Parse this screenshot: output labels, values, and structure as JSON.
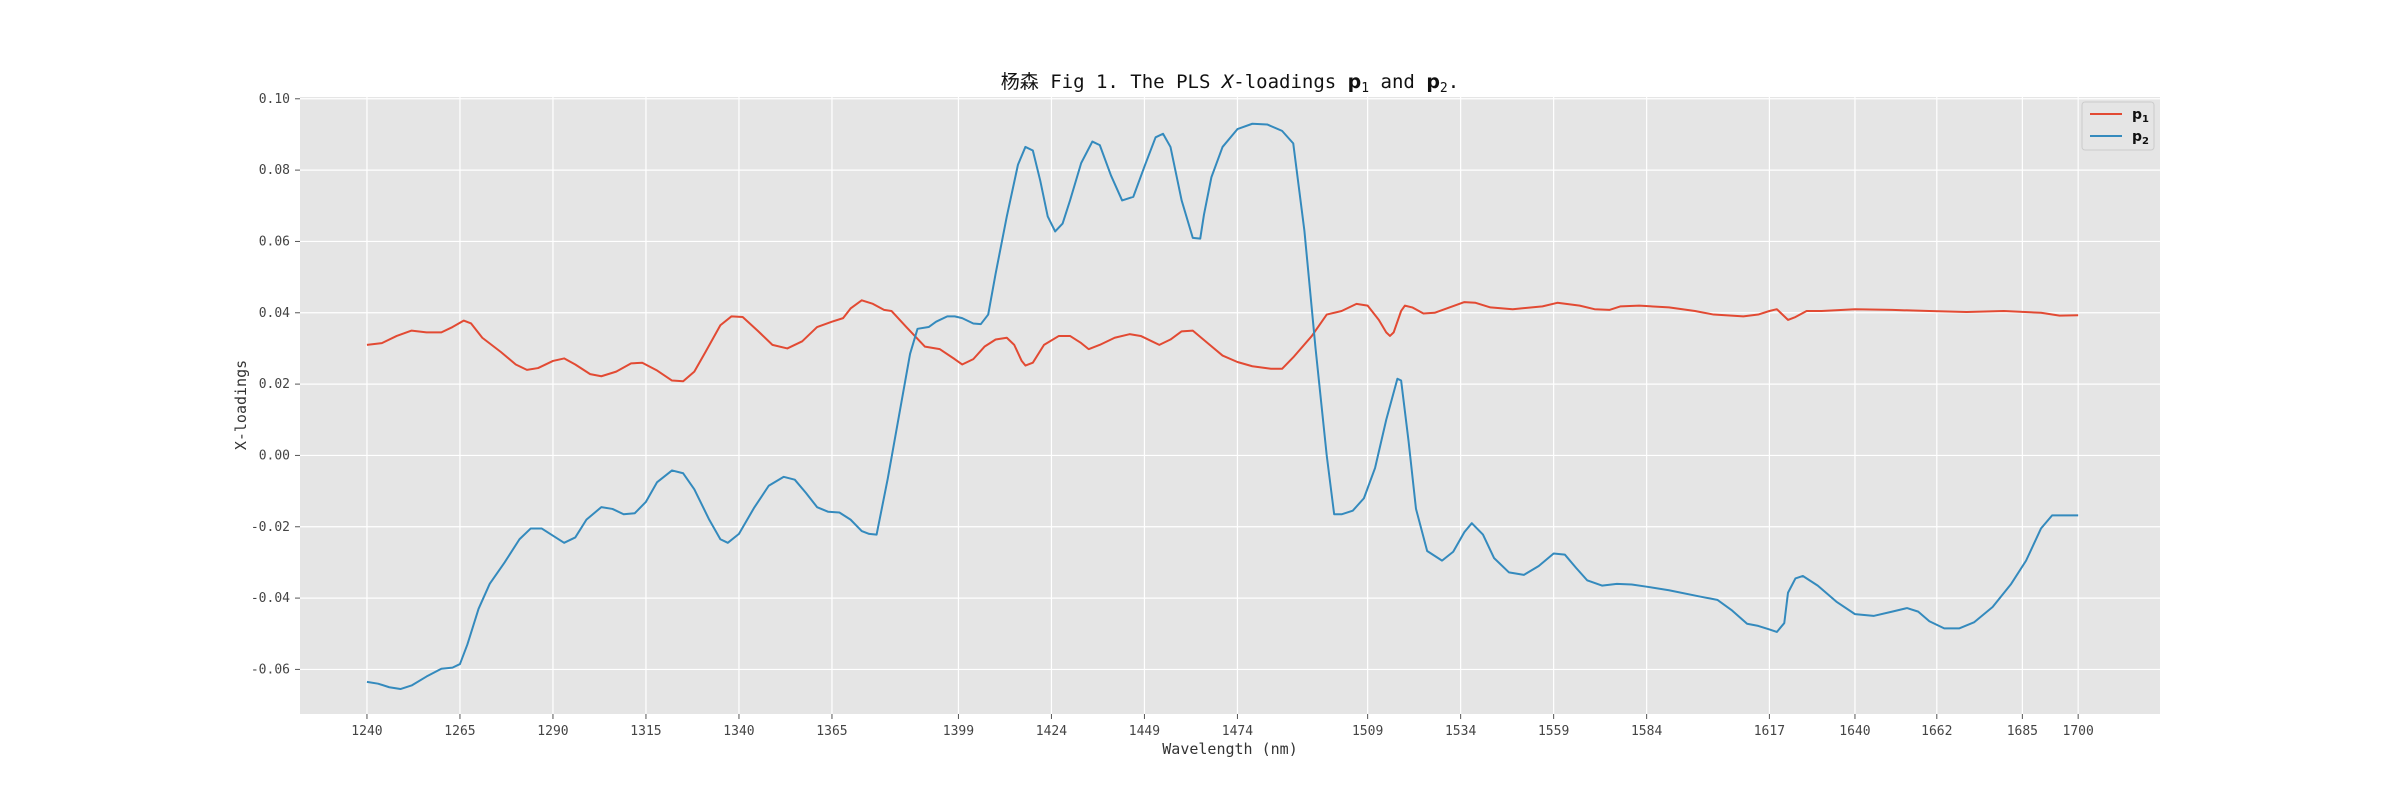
{
  "chart_data": {
    "type": "line",
    "title": {
      "prefix": "杨森 Fig 1. The PLS ",
      "x_var": "X",
      "mid": "-loadings ",
      "p1_base": "p",
      "p1_sub": "1",
      "and": " and ",
      "p2_base": "p",
      "p2_sub": "2",
      "end": "."
    },
    "xlabel": "Wavelength (nm)",
    "ylabel": "X-loadings",
    "xlim": [
      1222,
      1722
    ],
    "ylim": [
      -0.0725,
      0.1005
    ],
    "x_ticks": [
      1240,
      1265,
      1290,
      1315,
      1340,
      1365,
      1399,
      1424,
      1449,
      1474,
      1509,
      1534,
      1559,
      1584,
      1617,
      1640,
      1662,
      1685,
      1700
    ],
    "y_ticks": [
      -0.06,
      -0.04,
      -0.02,
      0.0,
      0.02,
      0.04,
      0.06,
      0.08,
      0.1
    ],
    "y_tick_labels": [
      "-0.06",
      "-0.04",
      "-0.02",
      "0.00",
      "0.02",
      "0.04",
      "0.06",
      "0.08",
      "0.10"
    ],
    "grid": true,
    "legend_position": "top-right",
    "series": [
      {
        "name": "p1",
        "legend_base": "p",
        "legend_sub": "1",
        "color": "#E24A33",
        "points": [
          [
            1240,
            0.031
          ],
          [
            1244,
            0.0315
          ],
          [
            1248,
            0.0335
          ],
          [
            1252,
            0.035
          ],
          [
            1256,
            0.0345
          ],
          [
            1260,
            0.0345
          ],
          [
            1263,
            0.036
          ],
          [
            1266,
            0.0378
          ],
          [
            1268,
            0.037
          ],
          [
            1271,
            0.033
          ],
          [
            1276,
            0.029
          ],
          [
            1280,
            0.0255
          ],
          [
            1283,
            0.024
          ],
          [
            1286,
            0.0245
          ],
          [
            1290,
            0.0265
          ],
          [
            1293,
            0.0272
          ],
          [
            1296,
            0.0255
          ],
          [
            1300,
            0.0228
          ],
          [
            1303,
            0.0222
          ],
          [
            1307,
            0.0235
          ],
          [
            1311,
            0.0258
          ],
          [
            1314,
            0.026
          ],
          [
            1318,
            0.0238
          ],
          [
            1322,
            0.021
          ],
          [
            1325,
            0.0208
          ],
          [
            1328,
            0.0235
          ],
          [
            1331,
            0.029
          ],
          [
            1335,
            0.0365
          ],
          [
            1338,
            0.039
          ],
          [
            1341,
            0.0388
          ],
          [
            1345,
            0.035
          ],
          [
            1349,
            0.031
          ],
          [
            1353,
            0.03
          ],
          [
            1357,
            0.032
          ],
          [
            1361,
            0.036
          ],
          [
            1365,
            0.0375
          ],
          [
            1368,
            0.0385
          ],
          [
            1370,
            0.0412
          ],
          [
            1373,
            0.0435
          ],
          [
            1376,
            0.0425
          ],
          [
            1379,
            0.0408
          ],
          [
            1381,
            0.0405
          ],
          [
            1385,
            0.036
          ],
          [
            1390,
            0.0305
          ],
          [
            1394,
            0.0298
          ],
          [
            1398,
            0.027
          ],
          [
            1400,
            0.0255
          ],
          [
            1403,
            0.027
          ],
          [
            1406,
            0.0305
          ],
          [
            1409,
            0.0325
          ],
          [
            1412,
            0.033
          ],
          [
            1414,
            0.031
          ],
          [
            1416,
            0.0265
          ],
          [
            1417,
            0.0252
          ],
          [
            1419,
            0.026
          ],
          [
            1422,
            0.031
          ],
          [
            1426,
            0.0335
          ],
          [
            1429,
            0.0335
          ],
          [
            1432,
            0.0315
          ],
          [
            1434,
            0.0298
          ],
          [
            1437,
            0.031
          ],
          [
            1441,
            0.033
          ],
          [
            1445,
            0.034
          ],
          [
            1448,
            0.0335
          ],
          [
            1451,
            0.032
          ],
          [
            1453,
            0.031
          ],
          [
            1456,
            0.0325
          ],
          [
            1459,
            0.0348
          ],
          [
            1462,
            0.035
          ],
          [
            1466,
            0.0315
          ],
          [
            1470,
            0.028
          ],
          [
            1474,
            0.0262
          ],
          [
            1478,
            0.025
          ],
          [
            1483,
            0.0243
          ],
          [
            1486,
            0.0243
          ],
          [
            1489,
            0.0275
          ],
          [
            1494,
            0.0335
          ],
          [
            1498,
            0.0395
          ],
          [
            1502,
            0.0405
          ],
          [
            1506,
            0.0425
          ],
          [
            1509,
            0.042
          ],
          [
            1512,
            0.038
          ],
          [
            1514,
            0.0345
          ],
          [
            1515,
            0.0335
          ],
          [
            1516,
            0.0345
          ],
          [
            1518,
            0.0405
          ],
          [
            1519,
            0.042
          ],
          [
            1521,
            0.0415
          ],
          [
            1524,
            0.0398
          ],
          [
            1527,
            0.04
          ],
          [
            1531,
            0.0415
          ],
          [
            1535,
            0.043
          ],
          [
            1538,
            0.0428
          ],
          [
            1542,
            0.0415
          ],
          [
            1548,
            0.041
          ],
          [
            1556,
            0.0418
          ],
          [
            1560,
            0.0428
          ],
          [
            1566,
            0.042
          ],
          [
            1570,
            0.041
          ],
          [
            1574,
            0.0408
          ],
          [
            1577,
            0.0418
          ],
          [
            1582,
            0.042
          ],
          [
            1590,
            0.0415
          ],
          [
            1597,
            0.0405
          ],
          [
            1602,
            0.0395
          ],
          [
            1610,
            0.039
          ],
          [
            1614,
            0.0395
          ],
          [
            1617,
            0.0405
          ],
          [
            1619,
            0.041
          ],
          [
            1620,
            0.04
          ],
          [
            1622,
            0.038
          ],
          [
            1624,
            0.0388
          ],
          [
            1627,
            0.0405
          ],
          [
            1631,
            0.0405
          ],
          [
            1640,
            0.041
          ],
          [
            1650,
            0.0408
          ],
          [
            1660,
            0.0405
          ],
          [
            1670,
            0.0402
          ],
          [
            1680,
            0.0405
          ],
          [
            1690,
            0.04
          ],
          [
            1695,
            0.0392
          ],
          [
            1700,
            0.0393
          ]
        ]
      },
      {
        "name": "p2",
        "legend_base": "p",
        "legend_sub": "2",
        "color": "#348ABD",
        "points": [
          [
            1240,
            -0.0635
          ],
          [
            1243,
            -0.064
          ],
          [
            1246,
            -0.065
          ],
          [
            1249,
            -0.0655
          ],
          [
            1252,
            -0.0645
          ],
          [
            1256,
            -0.062
          ],
          [
            1260,
            -0.0598
          ],
          [
            1263,
            -0.0595
          ],
          [
            1265,
            -0.0585
          ],
          [
            1267,
            -0.053
          ],
          [
            1270,
            -0.043
          ],
          [
            1273,
            -0.036
          ],
          [
            1277,
            -0.03
          ],
          [
            1281,
            -0.0235
          ],
          [
            1284,
            -0.0205
          ],
          [
            1287,
            -0.0205
          ],
          [
            1290,
            -0.0225
          ],
          [
            1293,
            -0.0245
          ],
          [
            1296,
            -0.023
          ],
          [
            1299,
            -0.018
          ],
          [
            1303,
            -0.0145
          ],
          [
            1306,
            -0.015
          ],
          [
            1309,
            -0.0165
          ],
          [
            1312,
            -0.0162
          ],
          [
            1315,
            -0.013
          ],
          [
            1318,
            -0.0075
          ],
          [
            1322,
            -0.0042
          ],
          [
            1325,
            -0.005
          ],
          [
            1328,
            -0.0095
          ],
          [
            1332,
            -0.018
          ],
          [
            1335,
            -0.0235
          ],
          [
            1337,
            -0.0245
          ],
          [
            1340,
            -0.022
          ],
          [
            1344,
            -0.0148
          ],
          [
            1348,
            -0.0085
          ],
          [
            1352,
            -0.006
          ],
          [
            1355,
            -0.0068
          ],
          [
            1358,
            -0.0105
          ],
          [
            1361,
            -0.0145
          ],
          [
            1364,
            -0.0158
          ],
          [
            1367,
            -0.016
          ],
          [
            1370,
            -0.018
          ],
          [
            1373,
            -0.0212
          ],
          [
            1375,
            -0.022
          ],
          [
            1377,
            -0.0222
          ],
          [
            1380,
            -0.0065
          ],
          [
            1383,
            0.011
          ],
          [
            1386,
            0.0285
          ],
          [
            1388,
            0.0355
          ],
          [
            1391,
            0.036
          ],
          [
            1393,
            0.0375
          ],
          [
            1396,
            0.039
          ],
          [
            1398,
            0.039
          ],
          [
            1400,
            0.0385
          ],
          [
            1403,
            0.037
          ],
          [
            1405,
            0.0368
          ],
          [
            1407,
            0.0395
          ],
          [
            1409,
            0.051
          ],
          [
            1412,
            0.067
          ],
          [
            1415,
            0.0815
          ],
          [
            1417,
            0.0865
          ],
          [
            1419,
            0.0855
          ],
          [
            1421,
            0.077
          ],
          [
            1423,
            0.067
          ],
          [
            1425,
            0.0628
          ],
          [
            1427,
            0.065
          ],
          [
            1429,
            0.0715
          ],
          [
            1432,
            0.082
          ],
          [
            1435,
            0.088
          ],
          [
            1437,
            0.087
          ],
          [
            1440,
            0.0785
          ],
          [
            1443,
            0.0715
          ],
          [
            1446,
            0.0725
          ],
          [
            1449,
            0.081
          ],
          [
            1452,
            0.0892
          ],
          [
            1454,
            0.0902
          ],
          [
            1456,
            0.0865
          ],
          [
            1459,
            0.0715
          ],
          [
            1462,
            0.061
          ],
          [
            1464,
            0.0608
          ],
          [
            1465,
            0.0675
          ],
          [
            1467,
            0.078
          ],
          [
            1470,
            0.0865
          ],
          [
            1474,
            0.0915
          ],
          [
            1478,
            0.093
          ],
          [
            1482,
            0.0928
          ],
          [
            1486,
            0.091
          ],
          [
            1489,
            0.0875
          ],
          [
            1492,
            0.063
          ],
          [
            1495,
            0.03
          ],
          [
            1498,
            0.0
          ],
          [
            1500,
            -0.0165
          ],
          [
            1502,
            -0.0165
          ],
          [
            1505,
            -0.0155
          ],
          [
            1508,
            -0.012
          ],
          [
            1511,
            -0.0035
          ],
          [
            1514,
            0.01
          ],
          [
            1517,
            0.0215
          ],
          [
            1518,
            0.021
          ],
          [
            1520,
            0.004
          ],
          [
            1522,
            -0.015
          ],
          [
            1525,
            -0.0268
          ],
          [
            1529,
            -0.0295
          ],
          [
            1532,
            -0.027
          ],
          [
            1535,
            -0.0215
          ],
          [
            1537,
            -0.019
          ],
          [
            1540,
            -0.0222
          ],
          [
            1543,
            -0.0288
          ],
          [
            1547,
            -0.0328
          ],
          [
            1551,
            -0.0335
          ],
          [
            1555,
            -0.031
          ],
          [
            1559,
            -0.0275
          ],
          [
            1562,
            -0.0278
          ],
          [
            1565,
            -0.0315
          ],
          [
            1568,
            -0.035
          ],
          [
            1572,
            -0.0365
          ],
          [
            1576,
            -0.036
          ],
          [
            1580,
            -0.0362
          ],
          [
            1584,
            -0.0368
          ],
          [
            1590,
            -0.0378
          ],
          [
            1598,
            -0.0395
          ],
          [
            1603,
            -0.0405
          ],
          [
            1607,
            -0.0435
          ],
          [
            1611,
            -0.0472
          ],
          [
            1614,
            -0.0478
          ],
          [
            1617,
            -0.0488
          ],
          [
            1619,
            -0.0495
          ],
          [
            1621,
            -0.047
          ],
          [
            1622,
            -0.0385
          ],
          [
            1624,
            -0.0345
          ],
          [
            1626,
            -0.0338
          ],
          [
            1630,
            -0.0365
          ],
          [
            1635,
            -0.041
          ],
          [
            1640,
            -0.0445
          ],
          [
            1645,
            -0.045
          ],
          [
            1650,
            -0.0438
          ],
          [
            1654,
            -0.0428
          ],
          [
            1657,
            -0.0438
          ],
          [
            1660,
            -0.0465
          ],
          [
            1664,
            -0.0485
          ],
          [
            1668,
            -0.0485
          ],
          [
            1672,
            -0.0468
          ],
          [
            1677,
            -0.0425
          ],
          [
            1682,
            -0.036
          ],
          [
            1686,
            -0.0295
          ],
          [
            1690,
            -0.0205
          ],
          [
            1693,
            -0.0168
          ],
          [
            1697,
            -0.0168
          ],
          [
            1700,
            -0.0168
          ]
        ]
      }
    ]
  }
}
